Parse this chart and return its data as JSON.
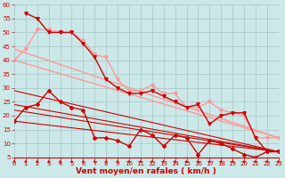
{
  "bg_color": "#cce8e8",
  "grid_color": "#aacccc",
  "xlabel": "Vent moyen/en rafales ( km/h )",
  "xlim": [
    0,
    23
  ],
  "ylim": [
    5,
    60
  ],
  "yticks": [
    5,
    10,
    15,
    20,
    25,
    30,
    35,
    40,
    45,
    50,
    55,
    60
  ],
  "xticks": [
    0,
    1,
    2,
    3,
    4,
    5,
    6,
    7,
    8,
    9,
    10,
    11,
    12,
    13,
    14,
    15,
    16,
    17,
    18,
    19,
    20,
    21,
    22,
    23
  ],
  "lines": [
    {
      "x": [
        0,
        1,
        2,
        3,
        4,
        5,
        6,
        7,
        8,
        9,
        10,
        11,
        12,
        13,
        14,
        15,
        16,
        17,
        18,
        19,
        20,
        21,
        22,
        23
      ],
      "y": [
        40,
        44,
        51,
        51,
        50,
        50,
        47,
        42,
        41,
        33,
        29,
        29,
        31,
        28,
        28,
        23,
        23,
        25,
        22,
        21,
        20,
        12,
        12,
        12
      ],
      "color": "#ff9999",
      "lw": 1.0,
      "marker": "v",
      "ms": 2.5,
      "zorder": 4
    },
    {
      "x": [
        0,
        23
      ],
      "y": [
        40,
        12
      ],
      "color": "#ff9999",
      "lw": 1.0,
      "marker": null,
      "ms": 0,
      "zorder": 2
    },
    {
      "x": [
        0,
        23
      ],
      "y": [
        44,
        12
      ],
      "color": "#ff9999",
      "lw": 1.0,
      "marker": null,
      "ms": 0,
      "zorder": 2
    },
    {
      "x": [
        1,
        2,
        3,
        4,
        5,
        6,
        7,
        8,
        9,
        10,
        11,
        12,
        13,
        14,
        15,
        16,
        17,
        18,
        19,
        20,
        21,
        22,
        23
      ],
      "y": [
        57,
        55,
        50,
        50,
        50,
        46,
        41,
        33,
        30,
        28,
        28,
        29,
        27,
        25,
        23,
        24,
        17,
        20,
        21,
        21,
        12,
        7,
        7
      ],
      "color": "#cc0000",
      "lw": 1.0,
      "marker": "v",
      "ms": 2.5,
      "zorder": 4
    },
    {
      "x": [
        0,
        1,
        2,
        3,
        4,
        5,
        6,
        7,
        8,
        9,
        10,
        11,
        12,
        13,
        14,
        15,
        16,
        17,
        18,
        19,
        20,
        21,
        22,
        23
      ],
      "y": [
        18,
        23,
        24,
        29,
        25,
        23,
        22,
        12,
        12,
        11,
        9,
        15,
        13,
        9,
        13,
        12,
        6,
        11,
        10,
        8,
        6,
        5,
        7,
        7
      ],
      "color": "#cc0000",
      "lw": 1.0,
      "marker": "D",
      "ms": 2.0,
      "zorder": 4
    },
    {
      "x": [
        0,
        23
      ],
      "y": [
        18,
        7
      ],
      "color": "#cc0000",
      "lw": 0.8,
      "marker": null,
      "ms": 0,
      "zorder": 2
    },
    {
      "x": [
        0,
        23
      ],
      "y": [
        22,
        7
      ],
      "color": "#cc0000",
      "lw": 0.8,
      "marker": null,
      "ms": 0,
      "zorder": 2
    },
    {
      "x": [
        0,
        23
      ],
      "y": [
        24,
        7
      ],
      "color": "#cc0000",
      "lw": 0.8,
      "marker": null,
      "ms": 0,
      "zorder": 2
    },
    {
      "x": [
        0,
        23
      ],
      "y": [
        29,
        7
      ],
      "color": "#cc0000",
      "lw": 0.8,
      "marker": null,
      "ms": 0,
      "zorder": 2
    }
  ],
  "arrow_color": "#cc0000",
  "tick_color": "#cc0000",
  "label_color": "#cc0000",
  "tick_fontsize": 5,
  "xlabel_fontsize": 6.5
}
